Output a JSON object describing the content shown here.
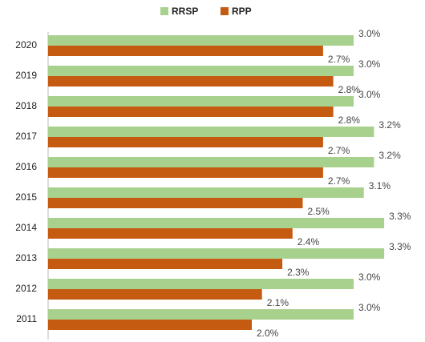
{
  "chart_data": {
    "type": "bar",
    "orientation": "horizontal",
    "categories": [
      "2020",
      "2019",
      "2018",
      "2017",
      "2016",
      "2015",
      "2014",
      "2013",
      "2012",
      "2011"
    ],
    "series": [
      {
        "name": "RRSP",
        "color": "#a9d18e",
        "values": [
          3.0,
          3.0,
          3.0,
          3.2,
          3.2,
          3.1,
          3.3,
          3.3,
          3.0,
          3.0
        ],
        "value_labels": [
          "3.0%",
          "3.0%",
          "3.0%",
          "3.2%",
          "3.2%",
          "3.1%",
          "3.3%",
          "3.3%",
          "3.0%",
          "3.0%"
        ]
      },
      {
        "name": "RPP",
        "color": "#c55a11",
        "values": [
          2.7,
          2.8,
          2.8,
          2.7,
          2.7,
          2.5,
          2.4,
          2.3,
          2.1,
          2.0
        ],
        "value_labels": [
          "2.7%",
          "2.8%",
          "2.8%",
          "2.7%",
          "2.7%",
          "2.5%",
          "2.4%",
          "2.3%",
          "2.1%",
          "2.0%"
        ]
      }
    ],
    "legend": "top"
  }
}
